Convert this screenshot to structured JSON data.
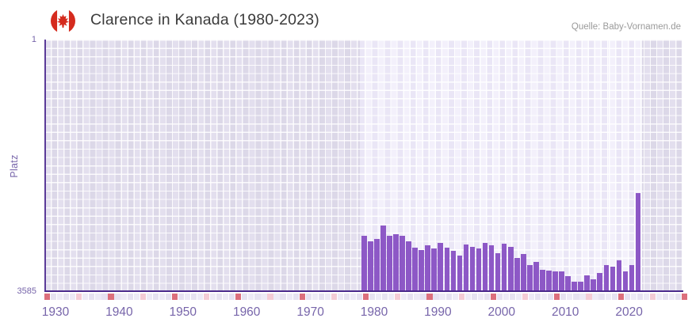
{
  "header": {
    "title": "Clarence in Kanada (1980-2023)",
    "source": "Quelle: Baby-Vornamen.de"
  },
  "y_axis": {
    "label": "Platz",
    "top_tick": "1",
    "bottom_tick": "3585"
  },
  "chart_data": {
    "type": "bar",
    "title": "Clarence in Kanada (1980-2023)",
    "xlabel": "",
    "ylabel": "Platz",
    "y_inverted": true,
    "ylim": [
      1,
      3585
    ],
    "grid": true,
    "x_tick_labels": [
      "1930",
      "1940",
      "1950",
      "1960",
      "1970",
      "1980",
      "1990",
      "2000",
      "2010",
      "2020"
    ],
    "highlight_range": [
      1980,
      2023
    ],
    "categories": [
      1980,
      1981,
      1982,
      1983,
      1984,
      1985,
      1986,
      1987,
      1988,
      1989,
      1990,
      1991,
      1992,
      1993,
      1994,
      1995,
      1996,
      1997,
      1998,
      1999,
      2000,
      2001,
      2002,
      2003,
      2004,
      2005,
      2006,
      2007,
      2008,
      2009,
      2010,
      2011,
      2012,
      2013,
      2014,
      2015,
      2016,
      2017,
      2018,
      2019,
      2020,
      2021,
      2022,
      2023
    ],
    "series": [
      {
        "name": "Clarence",
        "values": [
          2795,
          2877,
          2840,
          2645,
          2800,
          2776,
          2795,
          2877,
          2963,
          2997,
          2933,
          2974,
          2903,
          2966,
          3015,
          3075,
          2919,
          2952,
          2982,
          2892,
          2936,
          3045,
          2910,
          2955,
          3116,
          3053,
          3214,
          3169,
          3278,
          3292,
          3300,
          3307,
          3371,
          3446,
          3446,
          3356,
          3412,
          3322,
          3214,
          3240,
          3150,
          3307,
          3210,
          2188
        ]
      }
    ]
  },
  "colors": {
    "bar": "#8d58c6",
    "axis_line": "#4b2a8c",
    "tick_decade": "#dc6f7c",
    "tick_half_decade": "#f4cbd5",
    "tick_even": "#edeaf6",
    "tick_odd": "#e6e2f1",
    "flag_red": "#d52b1e",
    "label_purple": "#7765aa"
  },
  "icons": {
    "flag": "canada-flag-icon"
  }
}
